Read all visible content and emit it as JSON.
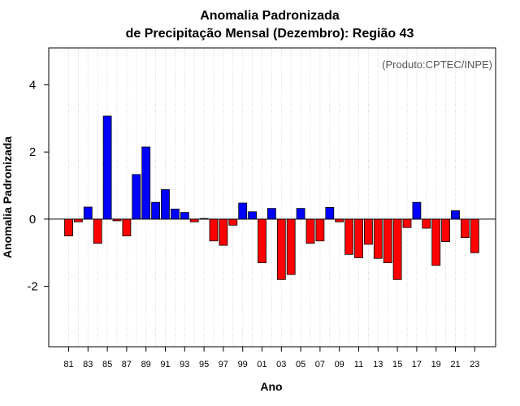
{
  "chart_data": {
    "type": "bar",
    "title": "Anomalia Padronizada",
    "subtitle": "de Precipitação Mensal (Dezembro): Região 43",
    "xlabel": "Ano",
    "ylabel": "Anomalia Padronizada",
    "annotation": "(Produto:CPTEC/INPE)",
    "ylim": [
      -3.8,
      5.1
    ],
    "yticks": [
      -2,
      0,
      2,
      4
    ],
    "xtick_labels": [
      "81",
      "83",
      "85",
      "87",
      "89",
      "91",
      "93",
      "95",
      "97",
      "99",
      "01",
      "03",
      "05",
      "07",
      "09",
      "11",
      "13",
      "15",
      "17",
      "19",
      "21",
      "23"
    ],
    "grid": "vertical dotted",
    "positive_color": "#0000ff",
    "negative_color": "#ff0000",
    "categories": [
      "1981",
      "1982",
      "1983",
      "1984",
      "1985",
      "1986",
      "1987",
      "1988",
      "1989",
      "1990",
      "1991",
      "1992",
      "1993",
      "1994",
      "1995",
      "1996",
      "1997",
      "1998",
      "1999",
      "2000",
      "2001",
      "2002",
      "2003",
      "2004",
      "2005",
      "2006",
      "2007",
      "2008",
      "2009",
      "2010",
      "2011",
      "2012",
      "2013",
      "2014",
      "2015",
      "2016",
      "2017",
      "2018",
      "2019",
      "2020",
      "2021",
      "2022",
      "2023"
    ],
    "values": [
      -0.5,
      -0.08,
      0.36,
      -0.72,
      3.07,
      -0.05,
      -0.5,
      1.33,
      2.15,
      0.5,
      0.88,
      0.3,
      0.2,
      -0.08,
      0.02,
      -0.65,
      -0.78,
      -0.18,
      0.48,
      0.22,
      -1.3,
      0.32,
      -1.8,
      -1.65,
      0.32,
      -0.72,
      -0.65,
      0.35,
      -0.08,
      -1.05,
      -1.15,
      -0.75,
      -1.17,
      -1.3,
      -1.8,
      -0.25,
      0.5,
      -0.27,
      -1.38,
      -0.67,
      0.25,
      -0.55,
      -1.0
    ]
  }
}
